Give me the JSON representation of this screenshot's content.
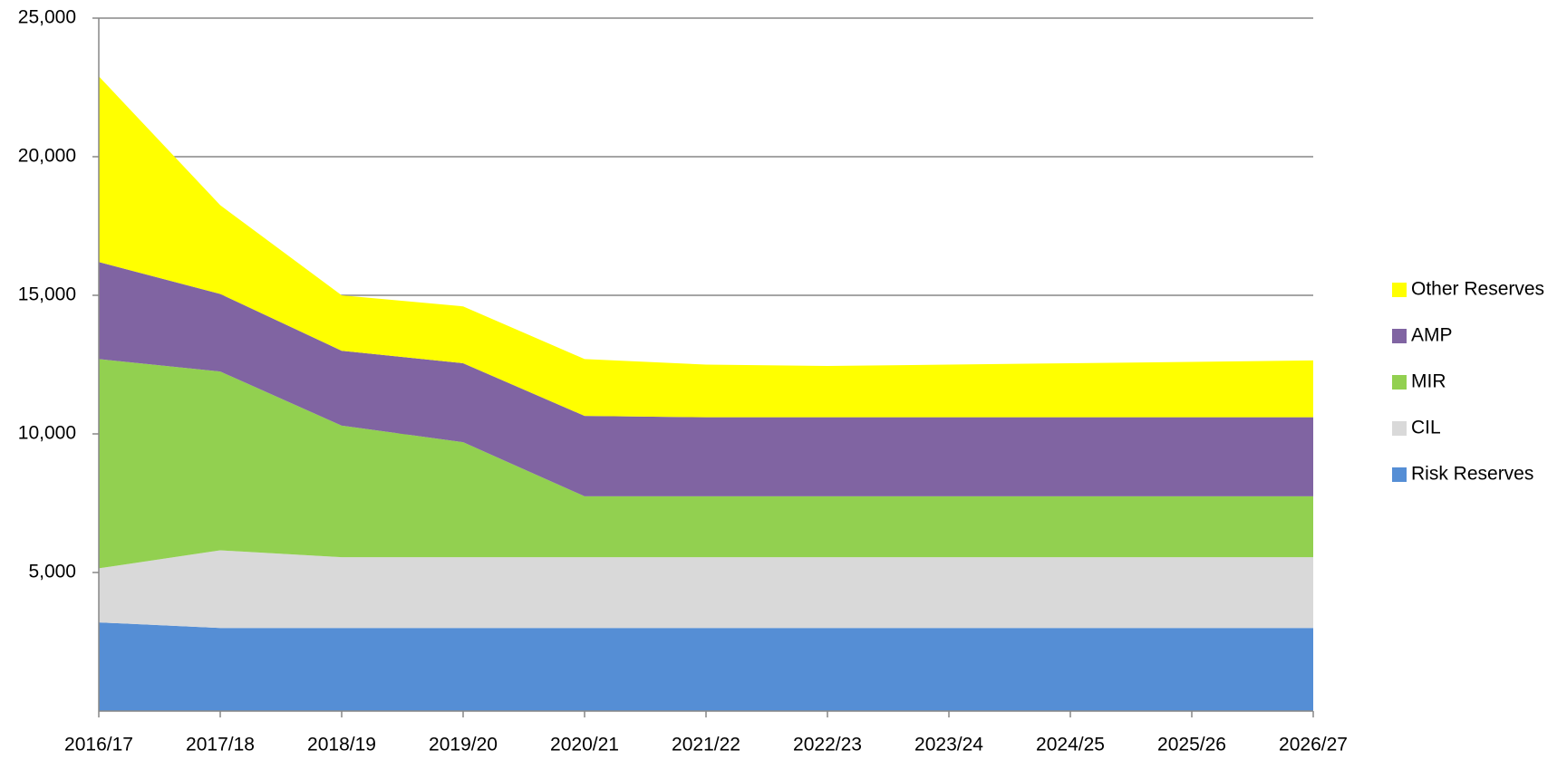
{
  "chart_data": {
    "type": "stacked_area",
    "categories": [
      "2016/17",
      "2017/18",
      "2018/19",
      "2019/20",
      "2020/21",
      "2021/22",
      "2022/23",
      "2023/24",
      "2024/25",
      "2025/26",
      "2026/27"
    ],
    "series": [
      {
        "name": "Risk Reserves",
        "color": "#558ed5",
        "values": [
          3200,
          3000,
          3000,
          3000,
          3000,
          3000,
          3000,
          3000,
          3000,
          3000,
          3000
        ]
      },
      {
        "name": "CIL",
        "color": "#d9d9d9",
        "values": [
          1950,
          2800,
          2550,
          2550,
          2550,
          2550,
          2550,
          2550,
          2550,
          2550,
          2550
        ]
      },
      {
        "name": "MIR",
        "color": "#92d050",
        "values": [
          7550,
          6450,
          4750,
          4150,
          2200,
          2200,
          2200,
          2200,
          2200,
          2200,
          2200
        ]
      },
      {
        "name": "AMP",
        "color": "#8064a2",
        "values": [
          3500,
          2800,
          2700,
          2850,
          2900,
          2850,
          2850,
          2850,
          2850,
          2850,
          2850
        ]
      },
      {
        "name": "Other Reserves",
        "color": "#ffff00",
        "values": [
          6700,
          3200,
          2000,
          2050,
          2050,
          1900,
          1850,
          1900,
          1950,
          2000,
          2050
        ]
      }
    ],
    "ylim": [
      0,
      25000
    ],
    "yticks": [
      {
        "value": 5000,
        "label": "5,000"
      },
      {
        "value": 10000,
        "label": "10,000"
      },
      {
        "value": 15000,
        "label": "15,000"
      },
      {
        "value": 20000,
        "label": "20,000"
      },
      {
        "value": 25000,
        "label": "25,000"
      }
    ],
    "grid": true,
    "legend": "right"
  }
}
